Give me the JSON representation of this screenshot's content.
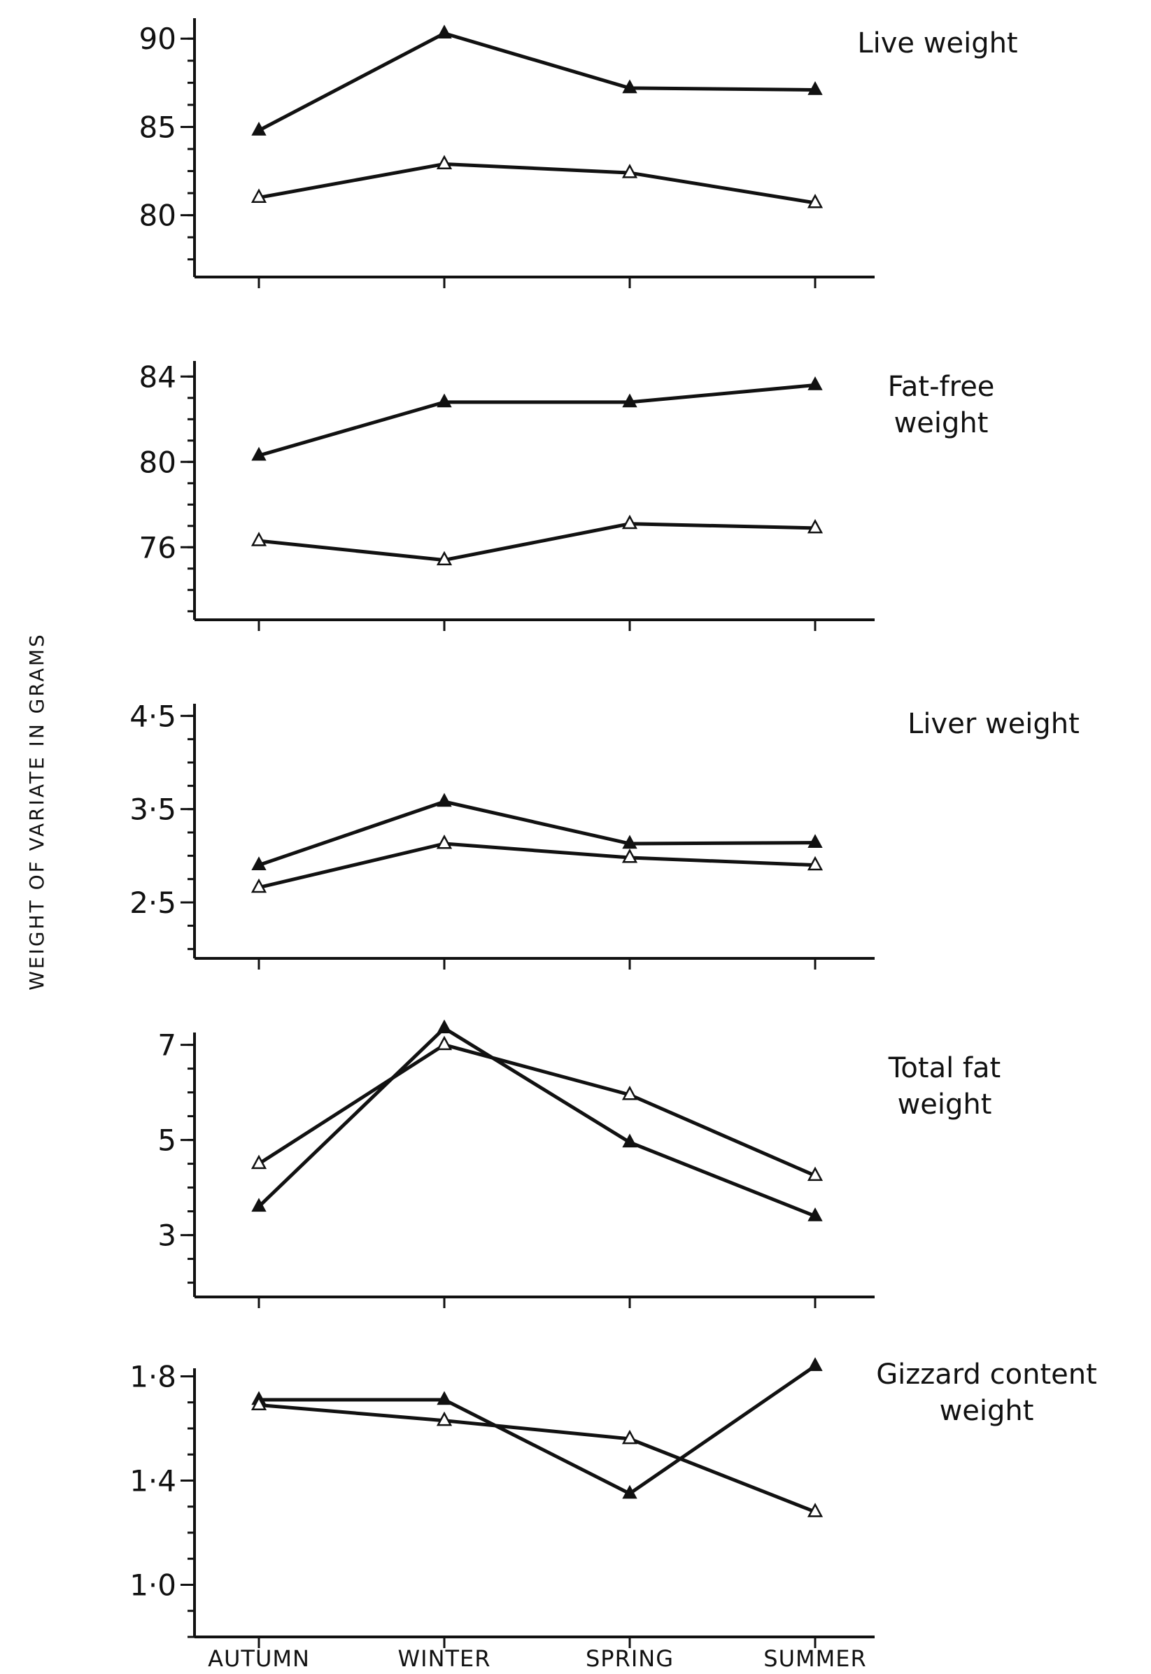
{
  "y_axis_title": "WEIGHT OF VARIATE IN GRAMS",
  "chart_data": [
    {
      "type": "line",
      "title_lines": [
        "Live weight"
      ],
      "categories": [
        "AUTUMN",
        "WINTER",
        "SPRING",
        "SUMMER"
      ],
      "ylim": [
        76.5,
        91
      ],
      "yticks": [
        80,
        85,
        90
      ],
      "ytick_labels": [
        "80",
        "85",
        "90"
      ],
      "series": [
        {
          "marker": "filled-triangle",
          "values": [
            84.8,
            90.3,
            87.2,
            87.1
          ]
        },
        {
          "marker": "open-triangle",
          "values": [
            81.0,
            82.9,
            82.4,
            80.7
          ]
        }
      ]
    },
    {
      "type": "line",
      "title_lines": [
        "Fat-free",
        "weight"
      ],
      "categories": [
        "AUTUMN",
        "WINTER",
        "SPRING",
        "SUMMER"
      ],
      "ylim": [
        72.6,
        84.6
      ],
      "yticks": [
        76,
        80,
        84
      ],
      "ytick_labels": [
        "76",
        "80",
        "84"
      ],
      "series": [
        {
          "marker": "filled-triangle",
          "values": [
            80.3,
            82.8,
            82.8,
            83.6
          ]
        },
        {
          "marker": "open-triangle",
          "values": [
            76.3,
            75.4,
            77.1,
            76.9
          ]
        }
      ]
    },
    {
      "type": "line",
      "title_lines": [
        "Liver weight"
      ],
      "categories": [
        "AUTUMN",
        "WINTER",
        "SPRING",
        "SUMMER"
      ],
      "ylim": [
        1.9,
        4.6
      ],
      "yticks": [
        2.5,
        3.5,
        4.5
      ],
      "ytick_labels": [
        "2·5",
        "3·5",
        "4·5"
      ],
      "series": [
        {
          "marker": "filled-triangle",
          "values": [
            2.9,
            3.58,
            3.13,
            3.14
          ]
        },
        {
          "marker": "open-triangle",
          "values": [
            2.66,
            3.13,
            2.98,
            2.9
          ]
        }
      ]
    },
    {
      "type": "line",
      "title_lines": [
        "Total fat",
        "weight"
      ],
      "categories": [
        "AUTUMN",
        "WINTER",
        "SPRING",
        "SUMMER"
      ],
      "ylim": [
        1.7,
        7.2
      ],
      "yticks": [
        3,
        5,
        7
      ],
      "ytick_labels": [
        "3",
        "5",
        "7"
      ],
      "series": [
        {
          "marker": "filled-triangle",
          "values": [
            3.6,
            7.35,
            4.95,
            3.4
          ]
        },
        {
          "marker": "open-triangle",
          "values": [
            4.5,
            7.0,
            5.95,
            4.25
          ]
        }
      ]
    },
    {
      "type": "line",
      "title_lines": [
        "Gizzard content",
        "weight"
      ],
      "categories": [
        "AUTUMN",
        "WINTER",
        "SPRING",
        "SUMMER"
      ],
      "ylim": [
        0.8,
        1.82
      ],
      "yticks": [
        1.0,
        1.4,
        1.8
      ],
      "ytick_labels": [
        "1·0",
        "1·4",
        "1·8"
      ],
      "series": [
        {
          "marker": "filled-triangle",
          "values": [
            1.71,
            1.71,
            1.35,
            1.84
          ]
        },
        {
          "marker": "open-triangle",
          "values": [
            1.69,
            1.63,
            1.56,
            1.28
          ]
        }
      ]
    }
  ]
}
